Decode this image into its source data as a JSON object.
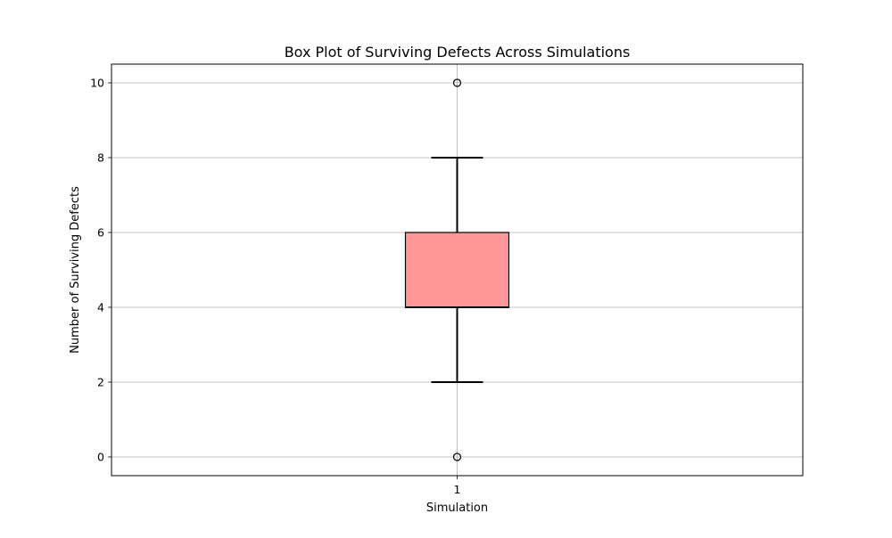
{
  "chart_data": {
    "type": "box",
    "title": "Box Plot of Surviving Defects Across Simulations",
    "xlabel": "Simulation",
    "ylabel": "Number of Surviving Defects",
    "categories": [
      "1"
    ],
    "ylim": [
      -0.5,
      10.5
    ],
    "yticks": [
      0,
      2,
      4,
      6,
      8,
      10
    ],
    "grid": true,
    "box_color": "#ff9999",
    "boxes": [
      {
        "category": "1",
        "whisker_low": 2,
        "q1": 4,
        "median": 4,
        "q3": 6,
        "whisker_high": 8,
        "outliers": [
          0,
          10
        ]
      }
    ]
  }
}
